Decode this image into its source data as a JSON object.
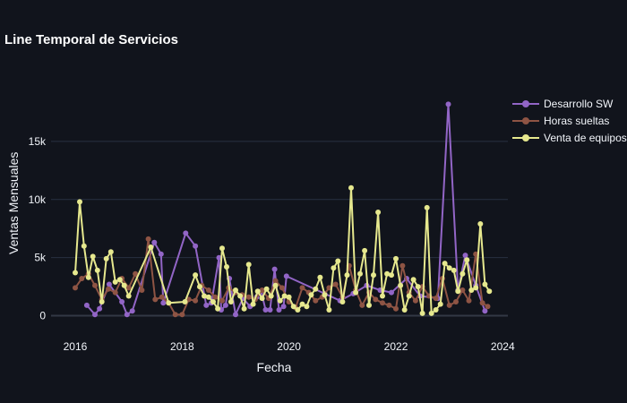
{
  "chart_data": {
    "type": "line",
    "title": "Line Temporal de Servicios",
    "xlabel": "Fecha",
    "ylabel": "Ventas Mensuales",
    "x_ticks": [
      "2016",
      "2018",
      "2020",
      "2022",
      "2024"
    ],
    "y_ticks": [
      "0",
      "5k",
      "10k",
      "15k"
    ],
    "xlim": [
      "2015-07-20",
      "2024-02-05"
    ],
    "ylim": [
      -1500,
      20000
    ],
    "grid": "horizontal",
    "legend_position": "top-right",
    "background": "#11141c",
    "series": [
      {
        "name": "Desarrollo SW",
        "color": "#9265c6",
        "points": [
          [
            "2016-03-20",
            900
          ],
          [
            "2016-05-15",
            100
          ],
          [
            "2016-06-15",
            600
          ],
          [
            "2016-08-20",
            2700
          ],
          [
            "2016-11-15",
            1200
          ],
          [
            "2016-12-20",
            100
          ],
          [
            "2017-01-25",
            400
          ],
          [
            "2017-06-25",
            6300
          ],
          [
            "2017-08-10",
            5300
          ],
          [
            "2017-08-25",
            1100
          ],
          [
            "2018-01-25",
            7100
          ],
          [
            "2018-04-01",
            6000
          ],
          [
            "2018-06-15",
            900
          ],
          [
            "2018-07-20",
            1100
          ],
          [
            "2018-09-10",
            5000
          ],
          [
            "2018-09-25",
            500
          ],
          [
            "2018-10-25",
            900
          ],
          [
            "2018-11-20",
            3200
          ],
          [
            "2019-01-01",
            100
          ],
          [
            "2019-02-20",
            1500
          ],
          [
            "2019-04-10",
            800
          ],
          [
            "2019-05-25",
            1600
          ],
          [
            "2019-06-25",
            2100
          ],
          [
            "2019-07-25",
            500
          ],
          [
            "2019-08-25",
            500
          ],
          [
            "2019-09-25",
            4000
          ],
          [
            "2019-10-25",
            500
          ],
          [
            "2019-11-25",
            800
          ],
          [
            "2019-12-15",
            3400
          ],
          [
            "2020-09-01",
            1900
          ],
          [
            "2020-12-15",
            1300
          ],
          [
            "2021-03-15",
            1900
          ],
          [
            "2021-06-15",
            2600
          ],
          [
            "2021-09-15",
            2200
          ],
          [
            "2021-12-01",
            2000
          ],
          [
            "2022-03-15",
            3200
          ],
          [
            "2022-06-15",
            1700
          ],
          [
            "2022-10-15",
            1500
          ],
          [
            "2022-12-25",
            18200
          ],
          [
            "2023-03-01",
            2200
          ],
          [
            "2023-04-20",
            5200
          ],
          [
            "2023-07-01",
            2600
          ],
          [
            "2023-09-01",
            400
          ]
        ]
      },
      {
        "name": "Horas sueltas",
        "color": "#8e5444",
        "points": [
          [
            "2016-01-01",
            2400
          ],
          [
            "2016-02-15",
            3200
          ],
          [
            "2016-04-01",
            3600
          ],
          [
            "2016-05-15",
            2600
          ],
          [
            "2016-07-01",
            1400
          ],
          [
            "2016-08-15",
            2300
          ],
          [
            "2016-10-01",
            2000
          ],
          [
            "2016-11-15",
            3200
          ],
          [
            "2017-01-01",
            2400
          ],
          [
            "2017-02-15",
            3600
          ],
          [
            "2017-04-01",
            2200
          ],
          [
            "2017-05-15",
            6600
          ],
          [
            "2017-07-01",
            1400
          ],
          [
            "2017-08-15",
            1600
          ],
          [
            "2017-10-01",
            1100
          ],
          [
            "2017-11-15",
            100
          ],
          [
            "2018-01-01",
            100
          ],
          [
            "2018-02-15",
            1400
          ],
          [
            "2018-04-01",
            1300
          ],
          [
            "2018-05-15",
            2600
          ],
          [
            "2018-07-01",
            2200
          ],
          [
            "2018-08-15",
            1600
          ],
          [
            "2018-10-01",
            1300
          ],
          [
            "2018-11-15",
            2400
          ],
          [
            "2019-01-01",
            2000
          ],
          [
            "2019-02-15",
            1800
          ],
          [
            "2019-04-01",
            1600
          ],
          [
            "2019-05-15",
            1400
          ],
          [
            "2019-07-01",
            2200
          ],
          [
            "2019-08-15",
            1500
          ],
          [
            "2019-10-01",
            3000
          ],
          [
            "2019-11-15",
            2400
          ],
          [
            "2020-01-01",
            1200
          ],
          [
            "2020-02-15",
            700
          ],
          [
            "2020-04-01",
            2400
          ],
          [
            "2020-05-15",
            2000
          ],
          [
            "2020-07-01",
            1300
          ],
          [
            "2020-08-15",
            1600
          ],
          [
            "2020-10-01",
            2400
          ],
          [
            "2020-11-15",
            2700
          ],
          [
            "2021-01-01",
            1600
          ],
          [
            "2021-02-15",
            4300
          ],
          [
            "2021-04-01",
            2200
          ],
          [
            "2021-05-15",
            900
          ],
          [
            "2021-07-01",
            2000
          ],
          [
            "2021-08-15",
            1400
          ],
          [
            "2021-10-01",
            1100
          ],
          [
            "2021-11-15",
            900
          ],
          [
            "2022-01-01",
            600
          ],
          [
            "2022-02-15",
            4300
          ],
          [
            "2022-04-01",
            2000
          ],
          [
            "2022-05-15",
            1300
          ],
          [
            "2022-07-01",
            2500
          ],
          [
            "2022-08-15",
            1700
          ],
          [
            "2022-10-01",
            1500
          ],
          [
            "2022-11-15",
            3200
          ],
          [
            "2023-01-01",
            900
          ],
          [
            "2023-02-15",
            1200
          ],
          [
            "2023-04-01",
            2200
          ],
          [
            "2023-05-15",
            1300
          ],
          [
            "2023-07-01",
            5300
          ],
          [
            "2023-08-15",
            1100
          ],
          [
            "2023-09-20",
            800
          ]
        ]
      },
      {
        "name": "Venta de equipos",
        "color": "#e6e88e",
        "points": [
          [
            "2016-01-01",
            3700
          ],
          [
            "2016-02-01",
            9800
          ],
          [
            "2016-03-01",
            6000
          ],
          [
            "2016-04-01",
            3300
          ],
          [
            "2016-05-01",
            5100
          ],
          [
            "2016-06-01",
            3900
          ],
          [
            "2016-07-01",
            1200
          ],
          [
            "2016-08-01",
            4900
          ],
          [
            "2016-09-01",
            5500
          ],
          [
            "2016-10-01",
            2900
          ],
          [
            "2016-11-01",
            3100
          ],
          [
            "2016-12-01",
            2600
          ],
          [
            "2017-01-01",
            1700
          ],
          [
            "2017-06-01",
            5900
          ],
          [
            "2017-10-01",
            1100
          ],
          [
            "2018-01-20",
            1200
          ],
          [
            "2018-04-01",
            3500
          ],
          [
            "2018-05-01",
            2500
          ],
          [
            "2018-06-01",
            1700
          ],
          [
            "2018-07-01",
            1600
          ],
          [
            "2018-08-01",
            1200
          ],
          [
            "2018-09-01",
            600
          ],
          [
            "2018-10-01",
            5800
          ],
          [
            "2018-11-01",
            4200
          ],
          [
            "2018-12-01",
            1200
          ],
          [
            "2019-01-01",
            2200
          ],
          [
            "2019-02-01",
            1700
          ],
          [
            "2019-03-01",
            600
          ],
          [
            "2019-04-01",
            4400
          ],
          [
            "2019-05-01",
            1000
          ],
          [
            "2019-06-01",
            2100
          ],
          [
            "2019-07-01",
            1500
          ],
          [
            "2019-08-01",
            2300
          ],
          [
            "2019-09-01",
            1700
          ],
          [
            "2019-10-01",
            2600
          ],
          [
            "2019-11-01",
            1300
          ],
          [
            "2019-12-01",
            1700
          ],
          [
            "2020-01-01",
            1600
          ],
          [
            "2020-02-01",
            800
          ],
          [
            "2020-03-01",
            500
          ],
          [
            "2020-04-01",
            1000
          ],
          [
            "2020-05-01",
            800
          ],
          [
            "2020-06-01",
            1800
          ],
          [
            "2020-07-01",
            2300
          ],
          [
            "2020-08-01",
            3300
          ],
          [
            "2020-09-01",
            1800
          ],
          [
            "2020-10-01",
            500
          ],
          [
            "2020-11-01",
            4100
          ],
          [
            "2020-12-01",
            4700
          ],
          [
            "2021-01-01",
            1200
          ],
          [
            "2021-02-01",
            3500
          ],
          [
            "2021-03-01",
            11000
          ],
          [
            "2021-04-01",
            2000
          ],
          [
            "2021-05-01",
            3600
          ],
          [
            "2021-06-01",
            5600
          ],
          [
            "2021-07-01",
            900
          ],
          [
            "2021-08-01",
            3500
          ],
          [
            "2021-09-01",
            8900
          ],
          [
            "2021-10-01",
            1700
          ],
          [
            "2021-11-01",
            3600
          ],
          [
            "2021-12-01",
            3500
          ],
          [
            "2022-01-01",
            4900
          ],
          [
            "2022-02-01",
            2600
          ],
          [
            "2022-03-01",
            500
          ],
          [
            "2022-04-01",
            1700
          ],
          [
            "2022-05-01",
            3100
          ],
          [
            "2022-06-01",
            2500
          ],
          [
            "2022-07-01",
            200
          ],
          [
            "2022-08-01",
            9300
          ],
          [
            "2022-09-01",
            200
          ],
          [
            "2022-10-01",
            500
          ],
          [
            "2022-11-01",
            1000
          ],
          [
            "2022-12-01",
            4500
          ],
          [
            "2023-01-01",
            4100
          ],
          [
            "2023-02-01",
            3900
          ],
          [
            "2023-03-01",
            2100
          ],
          [
            "2023-04-01",
            3600
          ],
          [
            "2023-05-01",
            4800
          ],
          [
            "2023-06-01",
            2200
          ],
          [
            "2023-07-01",
            2400
          ],
          [
            "2023-08-01",
            7900
          ],
          [
            "2023-09-01",
            2700
          ],
          [
            "2023-10-01",
            2100
          ]
        ]
      }
    ]
  }
}
